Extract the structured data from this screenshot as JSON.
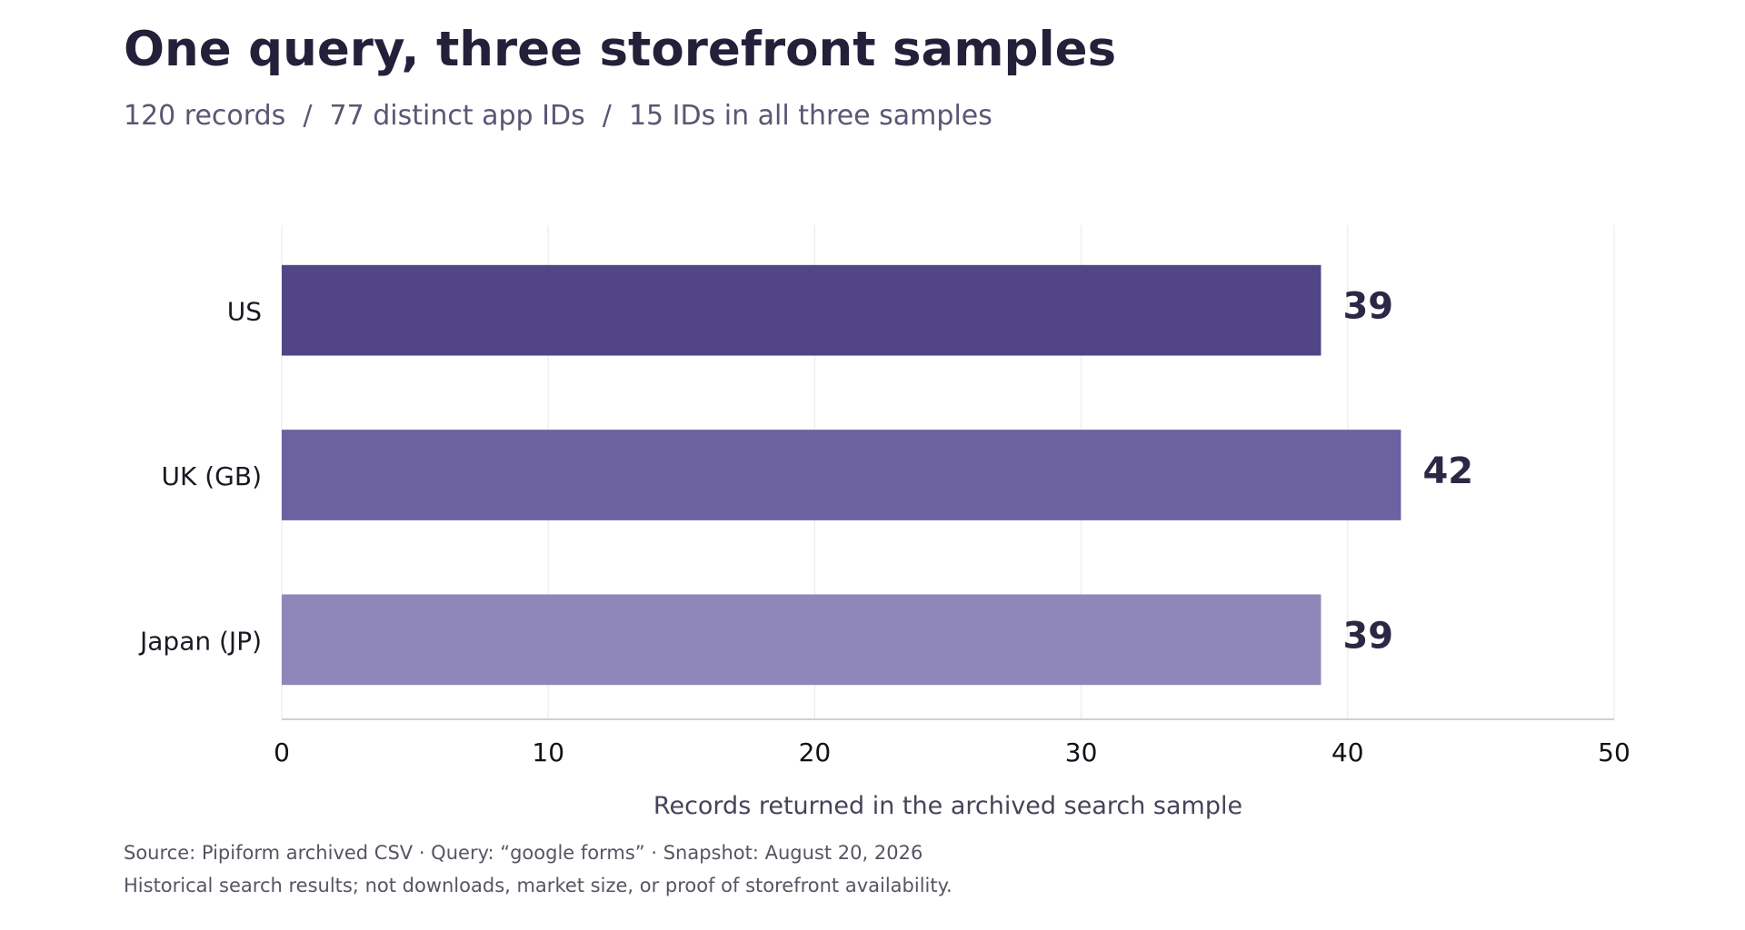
{
  "header": {
    "title": "One query, three storefront samples",
    "subtitle": "120 records  /  77 distinct app IDs  /  15 IDs in all three samples"
  },
  "footer": {
    "source": "Source: Pipiform archived CSV · Query: “google forms” · Snapshot: August 20, 2026",
    "note": "Historical search results; not downloads, market size, or proof of storefront availability."
  },
  "chart_data": {
    "type": "bar",
    "orientation": "horizontal",
    "title": "One query, three storefront samples",
    "subtitle": "120 records  /  77 distinct app IDs  /  15 IDs in all three samples",
    "categories": [
      "US",
      "UK (GB)",
      "Japan (JP)"
    ],
    "values": [
      39,
      42,
      39
    ],
    "bar_colors": [
      "#514587",
      "#6c62a0",
      "#8f87b9"
    ],
    "xlabel": "Records returned in the archived search sample",
    "ylabel": "",
    "xlim": [
      0,
      50
    ],
    "xticks": [
      0,
      10,
      20,
      30,
      40,
      50
    ],
    "grid": true,
    "data_labels": true,
    "legend": "none"
  }
}
